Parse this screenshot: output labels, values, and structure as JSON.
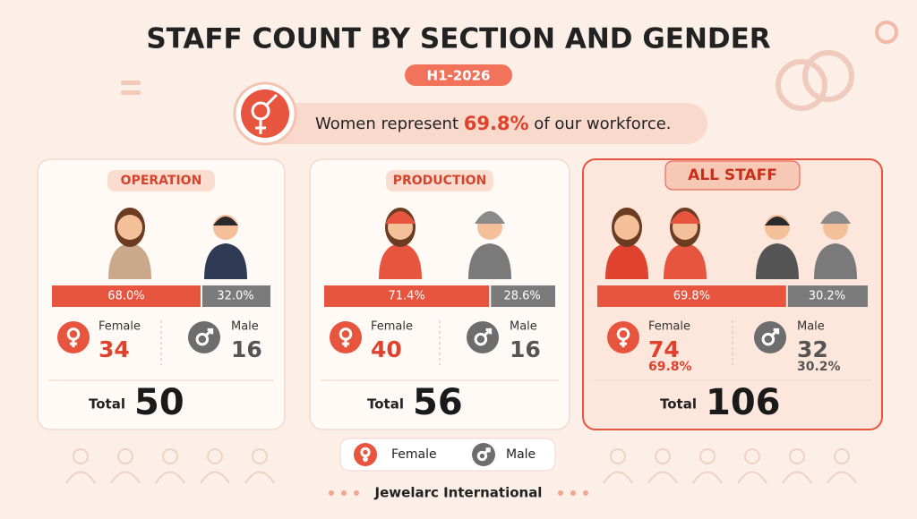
{
  "title": "STAFF COUNT BY SECTION AND GENDER",
  "period": "H1-2026",
  "headline": {
    "before": "Women represent ",
    "highlight": "69.8%",
    "after": " of our workforce."
  },
  "labels": {
    "female": "Female",
    "male": "Male",
    "total": "Total"
  },
  "sections": [
    {
      "name": "OPERATION",
      "female_pct": "68.0%",
      "male_pct": "32.0%",
      "female": 34,
      "male": 16,
      "total": 50
    },
    {
      "name": "PRODUCTION",
      "female_pct": "71.4%",
      "male_pct": "28.6%",
      "female": 40,
      "male": 16,
      "total": 56
    },
    {
      "name": "ALL STAFF",
      "female_pct": "69.8%",
      "male_pct": "30.2%",
      "female": 74,
      "male": 32,
      "total": 106,
      "female_share": "69.8%",
      "male_share": "30.2%"
    }
  ],
  "footer": "Jewelarc International"
}
